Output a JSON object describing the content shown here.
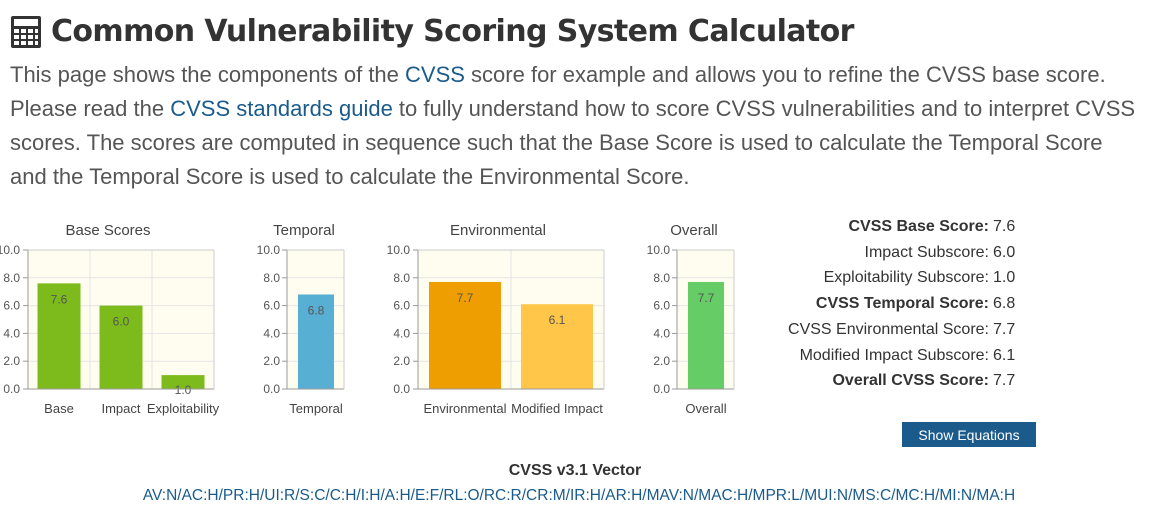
{
  "header": {
    "icon": "calculator-icon",
    "title": "Common Vulnerability Scoring System Calculator"
  },
  "intro": {
    "text_1": "This page shows the components of the ",
    "link_cvss": "CVSS",
    "text_2": " score for example and allows you to refine the CVSS base score. Please read the ",
    "link_guide": "CVSS standards guide",
    "text_3": " to fully understand how to score CVSS vulnerabilities and to interpret CVSS scores. The scores are computed in sequence such that the Base Score is used to calculate the Temporal Score and the Temporal Score is used to calculate the Environmental Score."
  },
  "chart_data": [
    {
      "type": "bar",
      "title": "Base Scores",
      "categories": [
        "Base",
        "Impact",
        "Exploitability"
      ],
      "values": [
        7.6,
        6.0,
        1.0
      ],
      "value_labels": [
        "7.6",
        "6.0",
        "1.0"
      ],
      "colors": [
        "#7dbb1c",
        "#7dbb1c",
        "#7dbb1c"
      ],
      "ylim": [
        0,
        10
      ],
      "yticks": [
        "0.0",
        "2.0",
        "4.0",
        "6.0",
        "8.0",
        "10.0"
      ],
      "grid": true
    },
    {
      "type": "bar",
      "title": "Temporal",
      "categories": [
        "Temporal"
      ],
      "values": [
        6.8
      ],
      "value_labels": [
        "6.8"
      ],
      "colors": [
        "#57afd3"
      ],
      "ylim": [
        0,
        10
      ],
      "yticks": [
        "0.0",
        "2.0",
        "4.0",
        "6.0",
        "8.0",
        "10.0"
      ],
      "grid": true
    },
    {
      "type": "bar",
      "title": "Environmental",
      "categories": [
        "Environmental",
        "Modified Impact"
      ],
      "values": [
        7.7,
        6.1
      ],
      "value_labels": [
        "7.7",
        "6.1"
      ],
      "colors": [
        "#ee9e00",
        "#ffc649"
      ],
      "ylim": [
        0,
        10
      ],
      "yticks": [
        "0.0",
        "2.0",
        "4.0",
        "6.0",
        "8.0",
        "10.0"
      ],
      "grid": true
    },
    {
      "type": "bar",
      "title": "Overall",
      "categories": [
        "Overall"
      ],
      "values": [
        7.7
      ],
      "value_labels": [
        "7.7"
      ],
      "colors": [
        "#66cc66"
      ],
      "ylim": [
        0,
        10
      ],
      "yticks": [
        "0.0",
        "2.0",
        "4.0",
        "6.0",
        "8.0",
        "10.0"
      ],
      "grid": true
    }
  ],
  "scores": [
    {
      "label": "CVSS Base Score:",
      "value": "7.6",
      "bold": true
    },
    {
      "label": "Impact Subscore:",
      "value": "6.0",
      "bold": false
    },
    {
      "label": "Exploitability Subscore:",
      "value": "1.0",
      "bold": false
    },
    {
      "label": "CVSS Temporal Score:",
      "value": "6.8",
      "bold": true
    },
    {
      "label": "CVSS Environmental Score:",
      "value": "7.7",
      "bold": false
    },
    {
      "label": "Modified Impact Subscore:",
      "value": "6.1",
      "bold": false
    },
    {
      "label": "Overall CVSS Score:",
      "value": "7.7",
      "bold": true
    }
  ],
  "show_equations_label": "Show Equations",
  "vector": {
    "title": "CVSS v3.1 Vector",
    "string": "AV:N/AC:H/PR:H/UI:R/S:C/C:H/I:H/A:H/E:F/RL:O/RC:R/CR:M/IR:H/AR:H/MAV:N/MAC:H/MPR:L/MUI:N/MS:C/MC:H/MI:N/MA:H"
  },
  "colors": {
    "link": "#1a5b8c",
    "button": "#1a5b8c",
    "plot_bg": "#fffdf0"
  }
}
